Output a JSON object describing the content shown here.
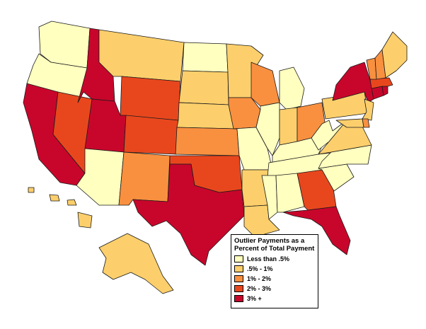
{
  "legend": {
    "title_line1": "Outlier Payments as a",
    "title_line2": "Percent of Total Payment",
    "items": [
      {
        "label": "Less than .5%",
        "color": "#ffffc0"
      },
      {
        "label": ".5% - 1%",
        "color": "#fccf6c"
      },
      {
        "label": "1% - 2%",
        "color": "#f99040"
      },
      {
        "label": "2% - 3%",
        "color": "#e8471e"
      },
      {
        "label": "3% +",
        "color": "#c8062b"
      }
    ]
  },
  "states": {
    "WA": 0,
    "OR": 0,
    "CA": 4,
    "NV": 3,
    "ID": 4,
    "MT": 1,
    "WY": 3,
    "UT": 4,
    "AZ": 0,
    "CO": 3,
    "NM": 2,
    "ND": 0,
    "SD": 1,
    "NE": 1,
    "KS": 2,
    "OK": 3,
    "TX": 4,
    "MN": 1,
    "IA": 2,
    "MO": 0,
    "AR": 1,
    "LA": 1,
    "WI": 2,
    "IL": 0,
    "MI": 0,
    "IN": 1,
    "OH": 2,
    "KY": 0,
    "TN": 0,
    "MS": 0,
    "AL": 0,
    "GA": 3,
    "FL": 4,
    "SC": 0,
    "NC": 0,
    "VA": 1,
    "WV": 0,
    "PA": 1,
    "NY": 4,
    "NJ": 1,
    "DE": 2,
    "MD": 1,
    "CT": 4,
    "RI": 4,
    "MA": 3,
    "VT": 2,
    "NH": 2,
    "ME": 1,
    "AK": 1,
    "HI": 1
  }
}
